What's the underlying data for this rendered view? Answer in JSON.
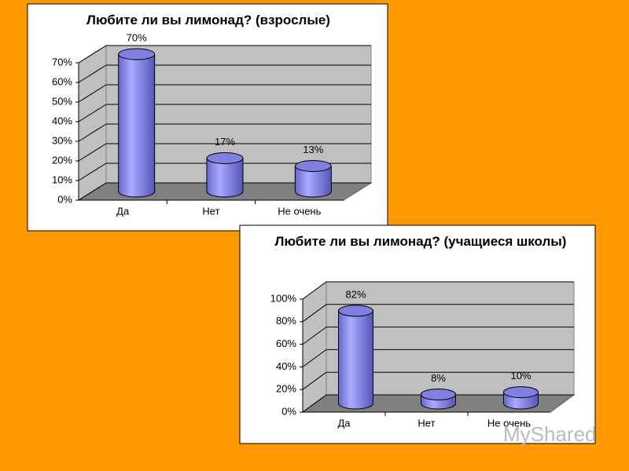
{
  "chart_data": [
    {
      "type": "bar",
      "title": "Любите ли вы лимонад? (взрослые)",
      "categories": [
        "Да",
        "Нет",
        "Не очень"
      ],
      "values": [
        70,
        17,
        13
      ],
      "value_labels": [
        "70%",
        "17%",
        "13%"
      ],
      "color": "#9999ff",
      "ylim": [
        0,
        70
      ],
      "yticks": [
        {
          "value": 0,
          "label": "0%"
        },
        {
          "value": 10,
          "label": "10%"
        },
        {
          "value": 20,
          "label": "20%"
        },
        {
          "value": 30,
          "label": "30%"
        },
        {
          "value": 40,
          "label": "40%"
        },
        {
          "value": 50,
          "label": "50%"
        },
        {
          "value": 60,
          "label": "60%"
        },
        {
          "value": 70,
          "label": "70%"
        }
      ],
      "grid": true
    },
    {
      "type": "bar",
      "title": "Любите ли вы лимонад? (учащиеся школы)",
      "categories": [
        "Да",
        "Нет",
        "Не очень"
      ],
      "values": [
        82,
        8,
        10
      ],
      "value_labels": [
        "82%",
        "8%",
        "10%"
      ],
      "color": "#9999ff",
      "ylim": [
        0,
        100
      ],
      "yticks": [
        {
          "value": 0,
          "label": "0%"
        },
        {
          "value": 20,
          "label": "20%"
        },
        {
          "value": 40,
          "label": "40%"
        },
        {
          "value": 60,
          "label": "60%"
        },
        {
          "value": 80,
          "label": "80%"
        },
        {
          "value": 100,
          "label": "100%"
        }
      ],
      "grid": true
    }
  ],
  "watermark": "MyShared"
}
